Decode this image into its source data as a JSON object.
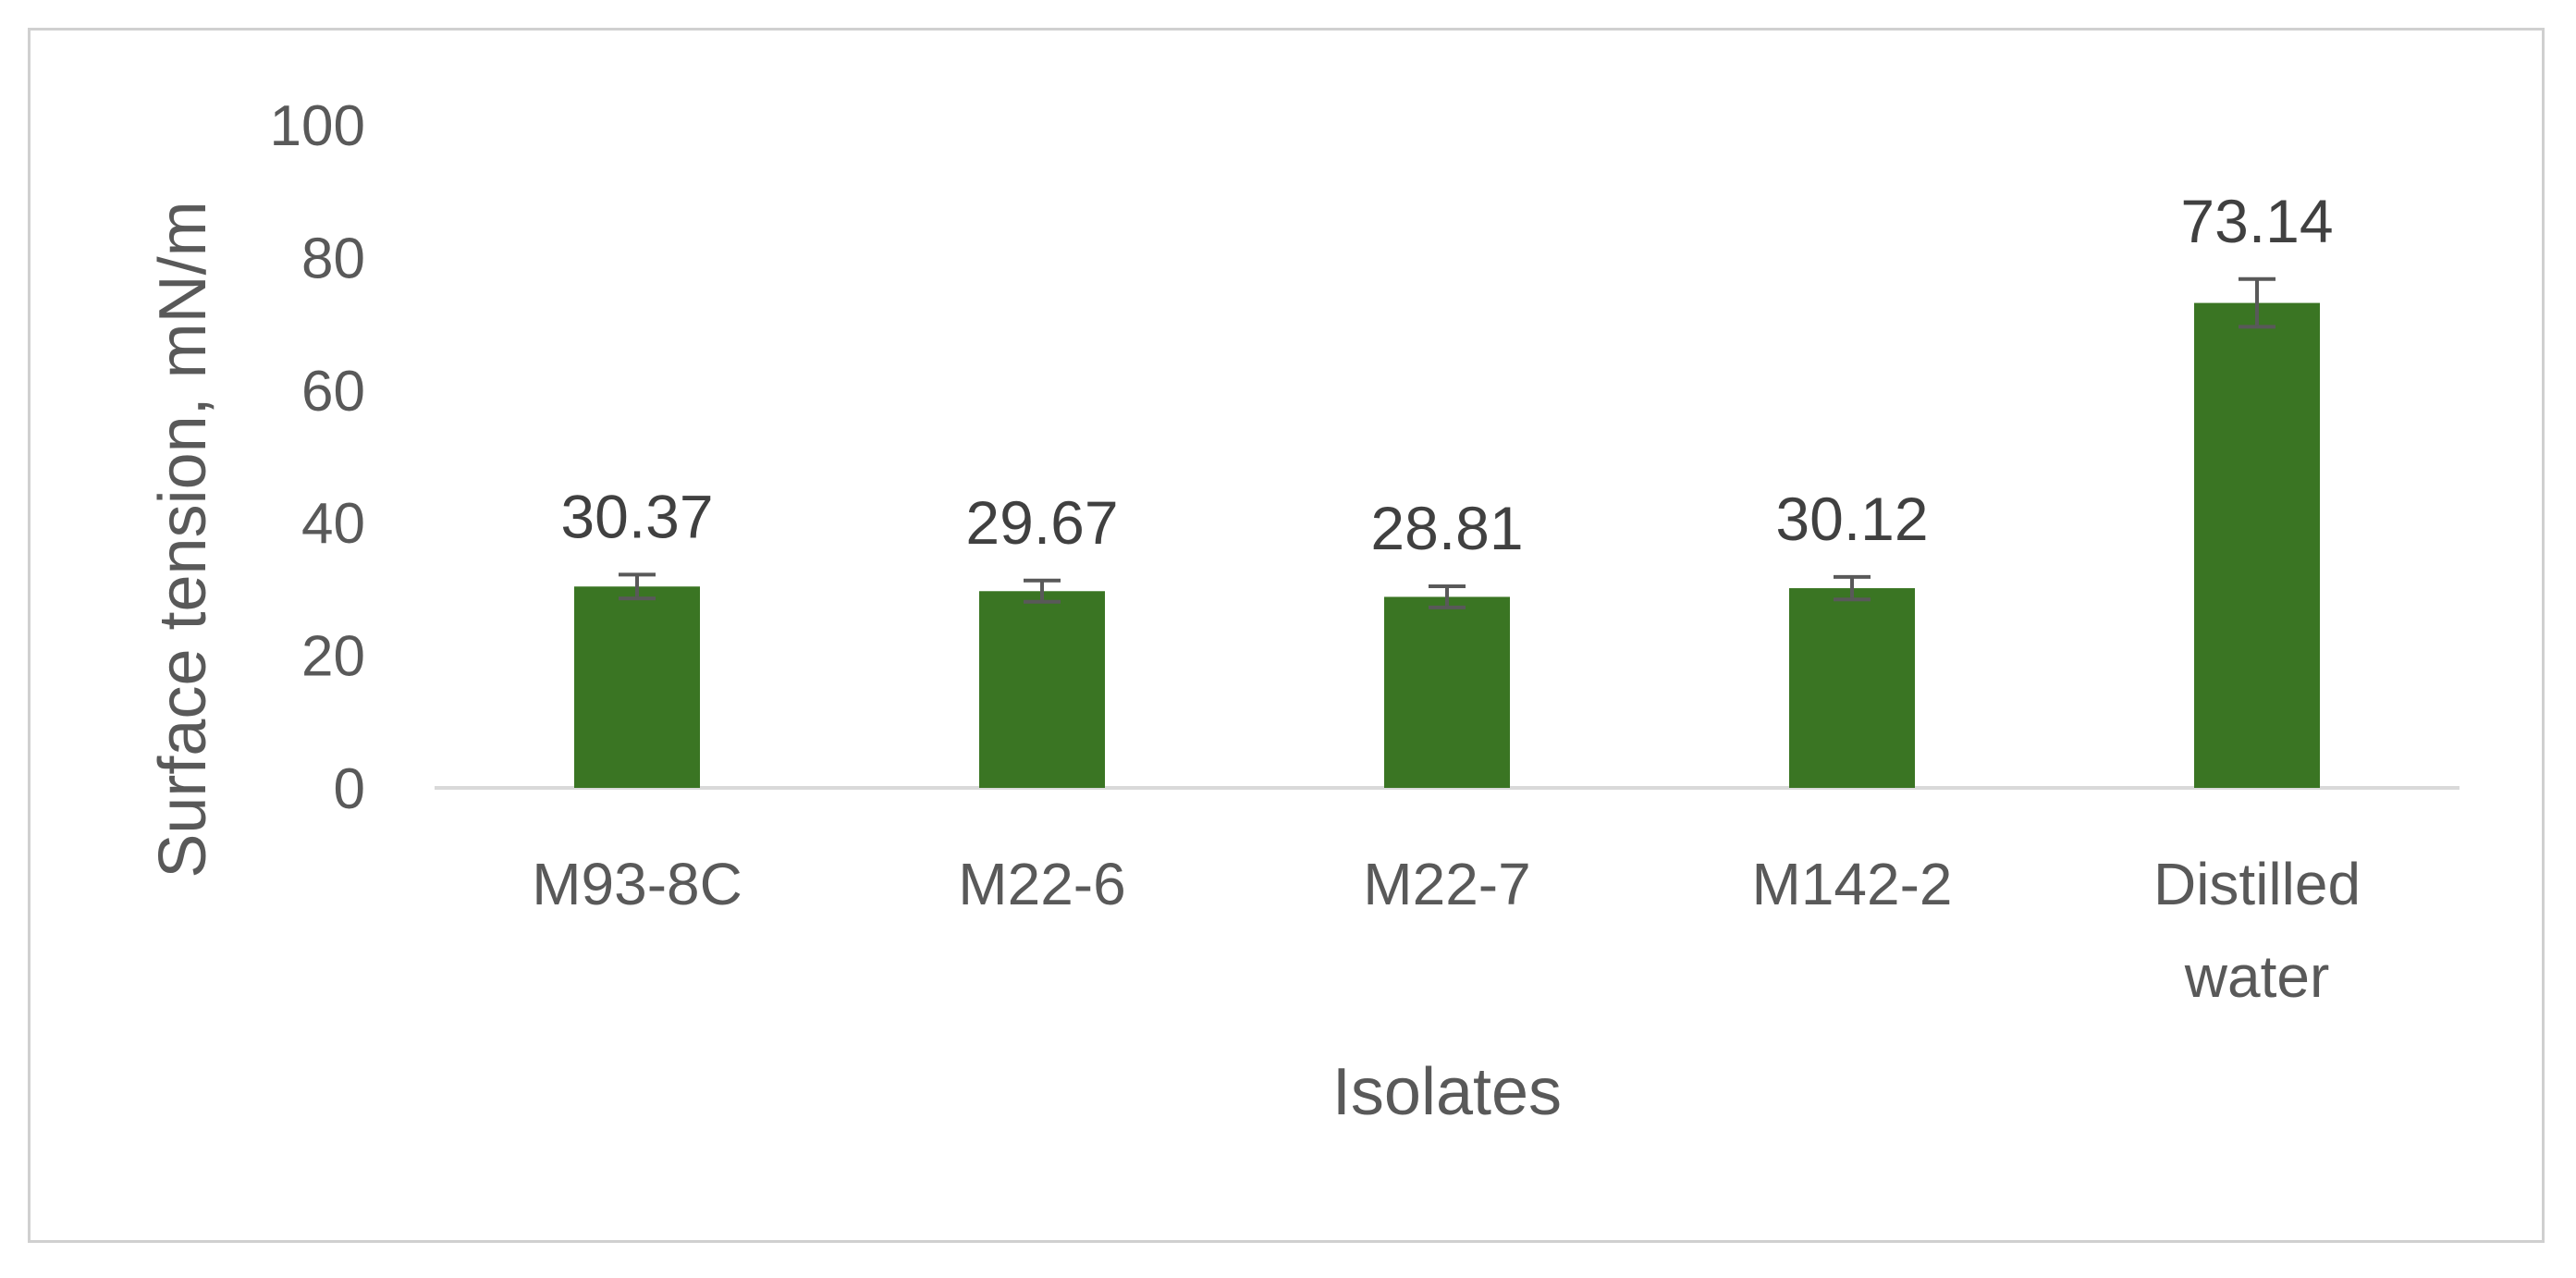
{
  "chart_data": {
    "type": "bar",
    "categories": [
      [
        "M93-8C"
      ],
      [
        "M22-6"
      ],
      [
        "M22-7"
      ],
      [
        "M142-2"
      ],
      [
        "Distilled",
        "water"
      ]
    ],
    "values": [
      30.37,
      29.67,
      28.81,
      30.12,
      73.14
    ],
    "data_labels": [
      "30.37",
      "29.67",
      "28.81",
      "30.12",
      "73.14"
    ],
    "error": [
      1.8,
      1.6,
      1.6,
      1.7,
      3.6
    ],
    "xlabel": "Isolates",
    "ylabel": "Surface tension, mN/m",
    "ylim": [
      0,
      100
    ],
    "yticks": [
      0,
      20,
      40,
      60,
      80,
      100
    ],
    "grid": false,
    "legend": "none",
    "colors": {
      "bar": "#3a7523",
      "error_bar": "#595959",
      "axis_line": "#d9d9d9",
      "frame": "#d0d0d0"
    }
  }
}
